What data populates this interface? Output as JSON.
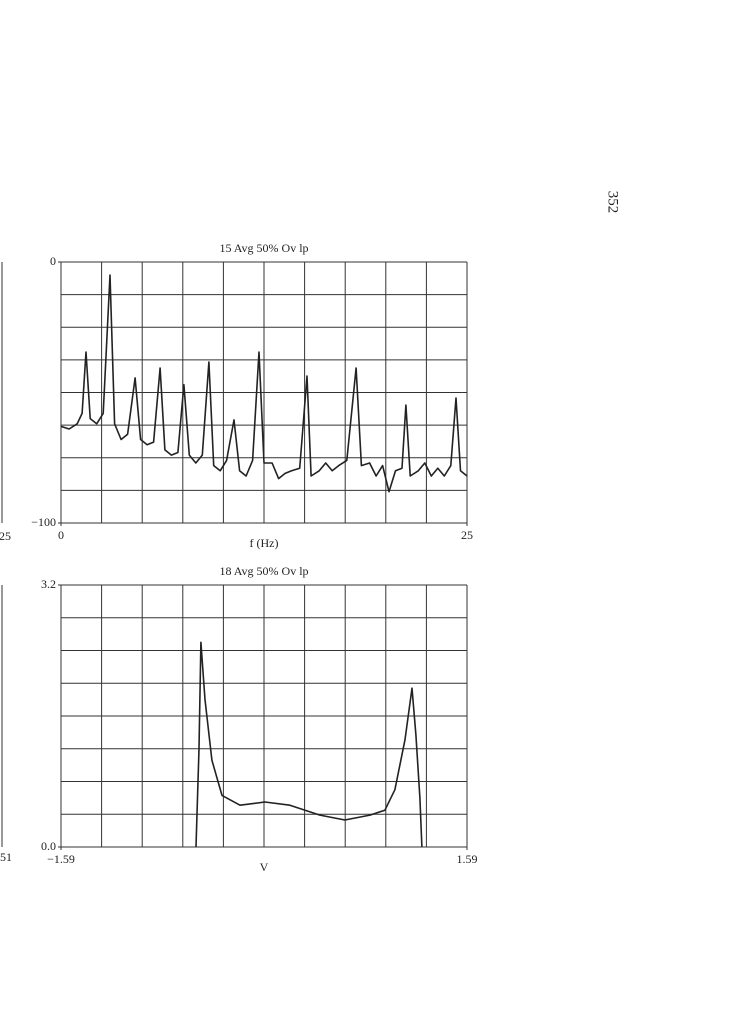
{
  "page_number": "352",
  "cropped_labels": [
    "25",
    "51"
  ],
  "chart_data": [
    {
      "type": "line",
      "title": "15 Avg 50% Ov lp",
      "xlabel": "f (Hz)",
      "color": "#222222",
      "xlim": [
        0,
        25
      ],
      "ylim": [
        -100,
        0
      ],
      "xticks": [
        0,
        25
      ],
      "yticks": [
        {
          "value": -100,
          "label": "−100"
        },
        0
      ],
      "xgrid": [
        0,
        2.5,
        5,
        7.5,
        10,
        12.5,
        15,
        17.5,
        20,
        22.5,
        25
      ],
      "ygrid": [
        -100,
        -87.5,
        -75,
        -62.5,
        -50,
        -37.5,
        -25,
        -12.5,
        0
      ],
      "x": [
        0,
        0.5,
        1.0,
        1.3,
        1.54,
        1.8,
        2.2,
        2.6,
        3.02,
        3.3,
        3.7,
        4.1,
        4.56,
        4.9,
        5.3,
        5.7,
        6.1,
        6.4,
        6.8,
        7.2,
        7.57,
        7.9,
        8.3,
        8.7,
        9.11,
        9.4,
        9.8,
        10.2,
        10.65,
        11.0,
        11.4,
        11.8,
        12.19,
        12.5,
        13.0,
        13.4,
        13.8,
        14.2,
        14.7,
        15.15,
        15.4,
        15.9,
        16.3,
        16.7,
        17.1,
        17.6,
        18.17,
        18.5,
        19.0,
        19.4,
        19.8,
        20.2,
        20.6,
        21.0,
        21.24,
        21.5,
        22.0,
        22.4,
        22.8,
        23.2,
        23.6,
        24.0,
        24.32,
        24.6,
        25
      ],
      "values": [
        -63,
        -64,
        -62,
        -58,
        -34.5,
        -60,
        -62,
        -58,
        -5,
        -62,
        -68,
        -66,
        -44.4,
        -68,
        -70,
        -69,
        -40.6,
        -72,
        -74,
        -73,
        -47,
        -74,
        -77,
        -74,
        -38.3,
        -78,
        -80,
        -76,
        -60.5,
        -80,
        -82,
        -76,
        -34.5,
        -77,
        -77,
        -83,
        -81,
        -80,
        -79,
        -43.7,
        -82,
        -80,
        -77,
        -80,
        -78,
        -76,
        -40.6,
        -78,
        -77,
        -82,
        -78,
        -88,
        -80,
        -79,
        -54.8,
        -82,
        -80,
        -77,
        -82,
        -79,
        -82,
        -78,
        -52.1,
        -80,
        -82
      ]
    },
    {
      "type": "line",
      "title": "18 Avg 50% Ov lp",
      "xlabel": "V",
      "color": "#222222",
      "xlim": [
        -1.59,
        1.59
      ],
      "ylim": [
        0,
        3.2
      ],
      "xticks": [
        {
          "value": -1.59,
          "label": "−1.59"
        },
        1.59
      ],
      "yticks": [
        {
          "value": 0,
          "label": "0.0"
        },
        3.2
      ],
      "xgrid": [
        -1.59,
        -1.272,
        -0.954,
        -0.636,
        -0.318,
        0,
        0.318,
        0.636,
        0.954,
        1.272,
        1.59
      ],
      "ygrid": [
        0,
        0.4,
        0.8,
        1.2,
        1.6,
        2.0,
        2.4,
        2.8,
        3.2
      ],
      "x": [
        -0.533,
        -0.509,
        -0.494,
        -0.462,
        -0.408,
        -0.329,
        -0.188,
        0.007,
        0.203,
        0.438,
        0.634,
        0.83,
        0.947,
        1.025,
        1.104,
        1.159,
        1.19,
        1.221,
        1.237
      ],
      "values": [
        0,
        1.2,
        2.5,
        1.8,
        1.06,
        0.63,
        0.51,
        0.55,
        0.51,
        0.39,
        0.33,
        0.39,
        0.45,
        0.7,
        1.31,
        1.94,
        1.37,
        0.6,
        0
      ]
    }
  ]
}
